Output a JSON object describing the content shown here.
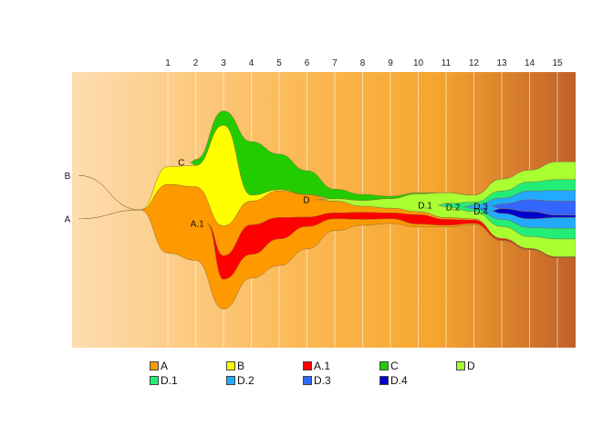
{
  "chart_data": {
    "type": "area",
    "subtype": "fish-plot (clonal evolution)",
    "title": "",
    "xlabel": "",
    "ylabel": "",
    "x_ticks": [
      1,
      2,
      3,
      4,
      5,
      6,
      7,
      8,
      9,
      10,
      11,
      12,
      13,
      14,
      15
    ],
    "xlim": [
      -2.4,
      15.7
    ],
    "grid_vertical": true,
    "background": "orange gradient (light left to dark right)",
    "legend_position": "bottom",
    "series": [
      {
        "name": "A",
        "color": "#FF9900",
        "parent": null,
        "start": -2.2,
        "label_at": -2.5,
        "values": [
          0,
          58,
          60,
          50,
          40,
          45,
          38,
          20,
          10,
          8,
          5,
          3,
          2,
          1,
          0.5,
          0.5
        ]
      },
      {
        "name": "B",
        "color": "#FFFF00",
        "parent": null,
        "start": -2.2,
        "label_at": -2.5,
        "values": [
          0,
          15,
          18,
          85,
          5,
          1,
          0,
          0,
          0,
          0,
          0,
          0,
          0,
          0,
          0,
          0
        ]
      },
      {
        "name": "A.1",
        "color": "#FF0000",
        "parent": "A",
        "start": 2.4,
        "label_at": 2.3,
        "values": [
          0,
          0,
          2,
          20,
          25,
          18,
          8,
          5,
          6,
          5,
          8,
          5,
          3,
          1,
          0.5,
          0.5
        ]
      },
      {
        "name": "C",
        "color": "#22CC00",
        "parent": null,
        "start": 1.8,
        "label_at": 1.6,
        "values": [
          0,
          0,
          5,
          12,
          45,
          30,
          20,
          8,
          5,
          2,
          1,
          0,
          0,
          0,
          0,
          0
        ]
      },
      {
        "name": "D",
        "color": "#AAFF33",
        "parent": null,
        "start": 6.3,
        "label_at": 6.1,
        "values": [
          0,
          0,
          0,
          0,
          0,
          0,
          0,
          2,
          5,
          8,
          15,
          18,
          12,
          20,
          20,
          30
        ]
      },
      {
        "name": "D.1",
        "color": "#22EE77",
        "parent": "D",
        "start": 10.7,
        "label_at": 10.5,
        "values": [
          0,
          0,
          0,
          0,
          0,
          0,
          0,
          0,
          0,
          0,
          0,
          3,
          5,
          12,
          15,
          18
        ]
      },
      {
        "name": "D.2",
        "color": "#22AAFF",
        "parent": "D.1",
        "start": 11.6,
        "label_at": 11.5,
        "values": [
          0,
          0,
          0,
          0,
          0,
          0,
          0,
          0,
          0,
          0,
          0,
          0,
          3,
          10,
          15,
          18
        ]
      },
      {
        "name": "D.3",
        "color": "#3366FF",
        "parent": "D.2",
        "start": 12.6,
        "label_at": 12.5,
        "values": [
          0,
          0,
          0,
          0,
          0,
          0,
          0,
          0,
          0,
          0,
          0,
          0,
          0,
          4,
          10,
          12
        ]
      },
      {
        "name": "D.4",
        "color": "#0000CC",
        "parent": "D.2",
        "start": 12.6,
        "label_at": 12.5,
        "values": [
          0,
          0,
          0,
          0,
          0,
          0,
          0,
          0,
          0,
          0,
          0,
          0,
          0,
          4,
          6,
          2
        ]
      }
    ]
  },
  "legend": {
    "items": [
      {
        "label": "A",
        "color": "#FF9900"
      },
      {
        "label": "B",
        "color": "#FFFF00"
      },
      {
        "label": "A.1",
        "color": "#FF0000"
      },
      {
        "label": "C",
        "color": "#22CC00"
      },
      {
        "label": "D",
        "color": "#AAFF33"
      },
      {
        "label": "D.1",
        "color": "#22EE77"
      },
      {
        "label": "D.2",
        "color": "#22AAFF"
      },
      {
        "label": "D.3",
        "color": "#3366FF"
      },
      {
        "label": "D.4",
        "color": "#0000CC"
      }
    ]
  }
}
